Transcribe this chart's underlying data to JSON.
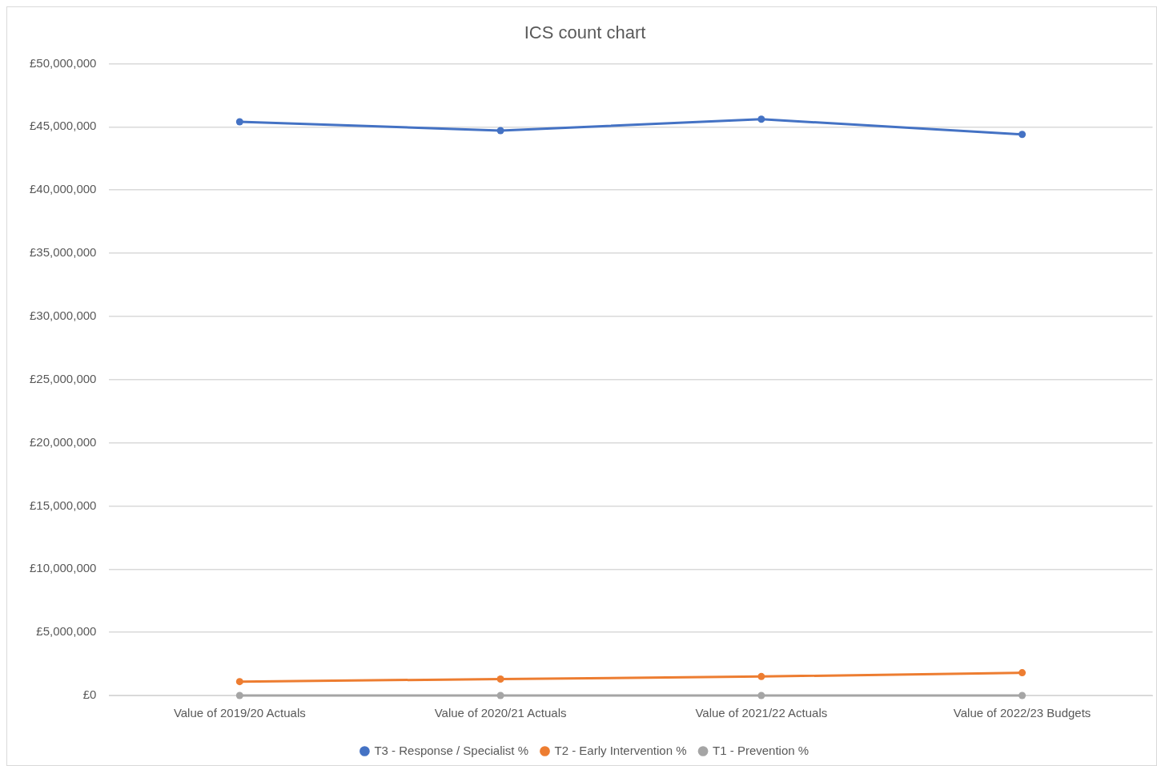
{
  "chart_data": {
    "type": "line",
    "title": "ICS count chart",
    "categories": [
      "Value of 2019/20 Actuals",
      "Value of 2020/21 Actuals",
      "Value of 2021/22 Actuals",
      "Value of 2022/23 Budgets"
    ],
    "series": [
      {
        "name": "T3 - Response / Specialist %",
        "color": "#4472c4",
        "values": [
          45400000,
          44700000,
          45600000,
          44400000
        ]
      },
      {
        "name": "T2 - Early Intervention %",
        "color": "#ed7d31",
        "values": [
          1100000,
          1300000,
          1500000,
          1800000
        ]
      },
      {
        "name": "T1 - Prevention %",
        "color": "#a5a5a5",
        "values": [
          0,
          0,
          0,
          0
        ]
      }
    ],
    "ylim": [
      0,
      50000000
    ],
    "yticks": [
      {
        "value": 0,
        "label": "£0"
      },
      {
        "value": 5000000,
        "label": "£5,000,000"
      },
      {
        "value": 10000000,
        "label": "£10,000,000"
      },
      {
        "value": 15000000,
        "label": "£15,000,000"
      },
      {
        "value": 20000000,
        "label": "£20,000,000"
      },
      {
        "value": 25000000,
        "label": "£25,000,000"
      },
      {
        "value": 30000000,
        "label": "£30,000,000"
      },
      {
        "value": 35000000,
        "label": "£35,000,000"
      },
      {
        "value": 40000000,
        "label": "£40,000,000"
      },
      {
        "value": 45000000,
        "label": "£45,000,000"
      },
      {
        "value": 50000000,
        "label": "£50,000,000"
      }
    ],
    "grid": "y",
    "legend": "bottom",
    "marker": "circle"
  }
}
